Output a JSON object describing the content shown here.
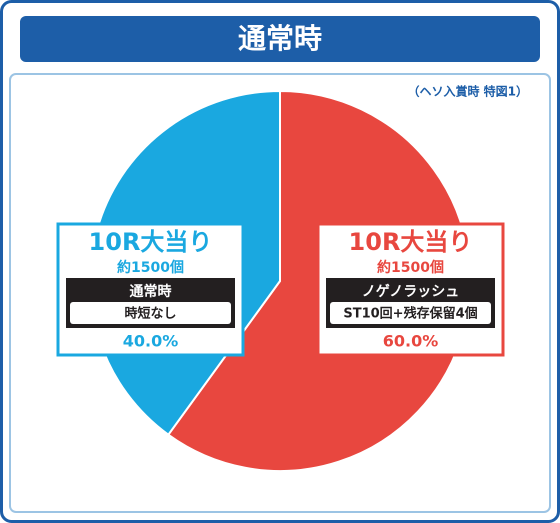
{
  "chart_data": {
    "type": "pie",
    "title": "通常時",
    "subtitle": "（ヘソ入賞時 特図1）",
    "categories": [
      "10R大当り",
      "10R大当り"
    ],
    "values": [
      60,
      40
    ],
    "value_labels": [
      "60.0%",
      "40.0%"
    ],
    "colors": [
      "#e8473f",
      "#1aa8e0"
    ],
    "sublabels": [
      "約1500個",
      "約1500個"
    ],
    "details": [
      [
        "ノゲノラッシュ",
        "ST10回+残存保留4個"
      ],
      [
        "通常時",
        "時短なし"
      ]
    ]
  }
}
